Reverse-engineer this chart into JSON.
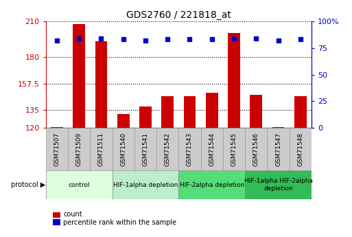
{
  "title": "GDS2760 / 221818_at",
  "samples": [
    "GSM71507",
    "GSM71509",
    "GSM71511",
    "GSM71540",
    "GSM71541",
    "GSM71542",
    "GSM71543",
    "GSM71544",
    "GSM71545",
    "GSM71546",
    "GSM71547",
    "GSM71548"
  ],
  "counts": [
    121,
    208,
    193,
    132,
    138,
    147,
    147,
    150,
    200,
    148,
    121,
    147
  ],
  "percentile_ranks": [
    82,
    84,
    84,
    83,
    82,
    83,
    83,
    83,
    84,
    84,
    82,
    83
  ],
  "ylim_left": [
    120,
    210
  ],
  "ylim_right": [
    0,
    100
  ],
  "yticks_left": [
    120,
    135,
    157.5,
    180,
    210
  ],
  "yticks_right": [
    0,
    25,
    50,
    75,
    100
  ],
  "bar_color": "#cc0000",
  "dot_color": "#0000cc",
  "protocol_groups": [
    {
      "label": "control",
      "start": 0,
      "end": 2,
      "color": "#ddffdd"
    },
    {
      "label": "HIF-1alpha depletion",
      "start": 3,
      "end": 5,
      "color": "#bbeecc"
    },
    {
      "label": "HIF-2alpha depletion",
      "start": 6,
      "end": 8,
      "color": "#55dd77"
    },
    {
      "label": "HIF-1alpha HIF-2alpha\ndepletion",
      "start": 9,
      "end": 11,
      "color": "#33bb55"
    }
  ],
  "legend_items": [
    {
      "label": "count",
      "color": "#cc0000"
    },
    {
      "label": "percentile rank within the sample",
      "color": "#0000cc"
    }
  ],
  "background_color": "#ffffff",
  "sample_box_color": "#cccccc",
  "sample_box_edge": "#999999"
}
